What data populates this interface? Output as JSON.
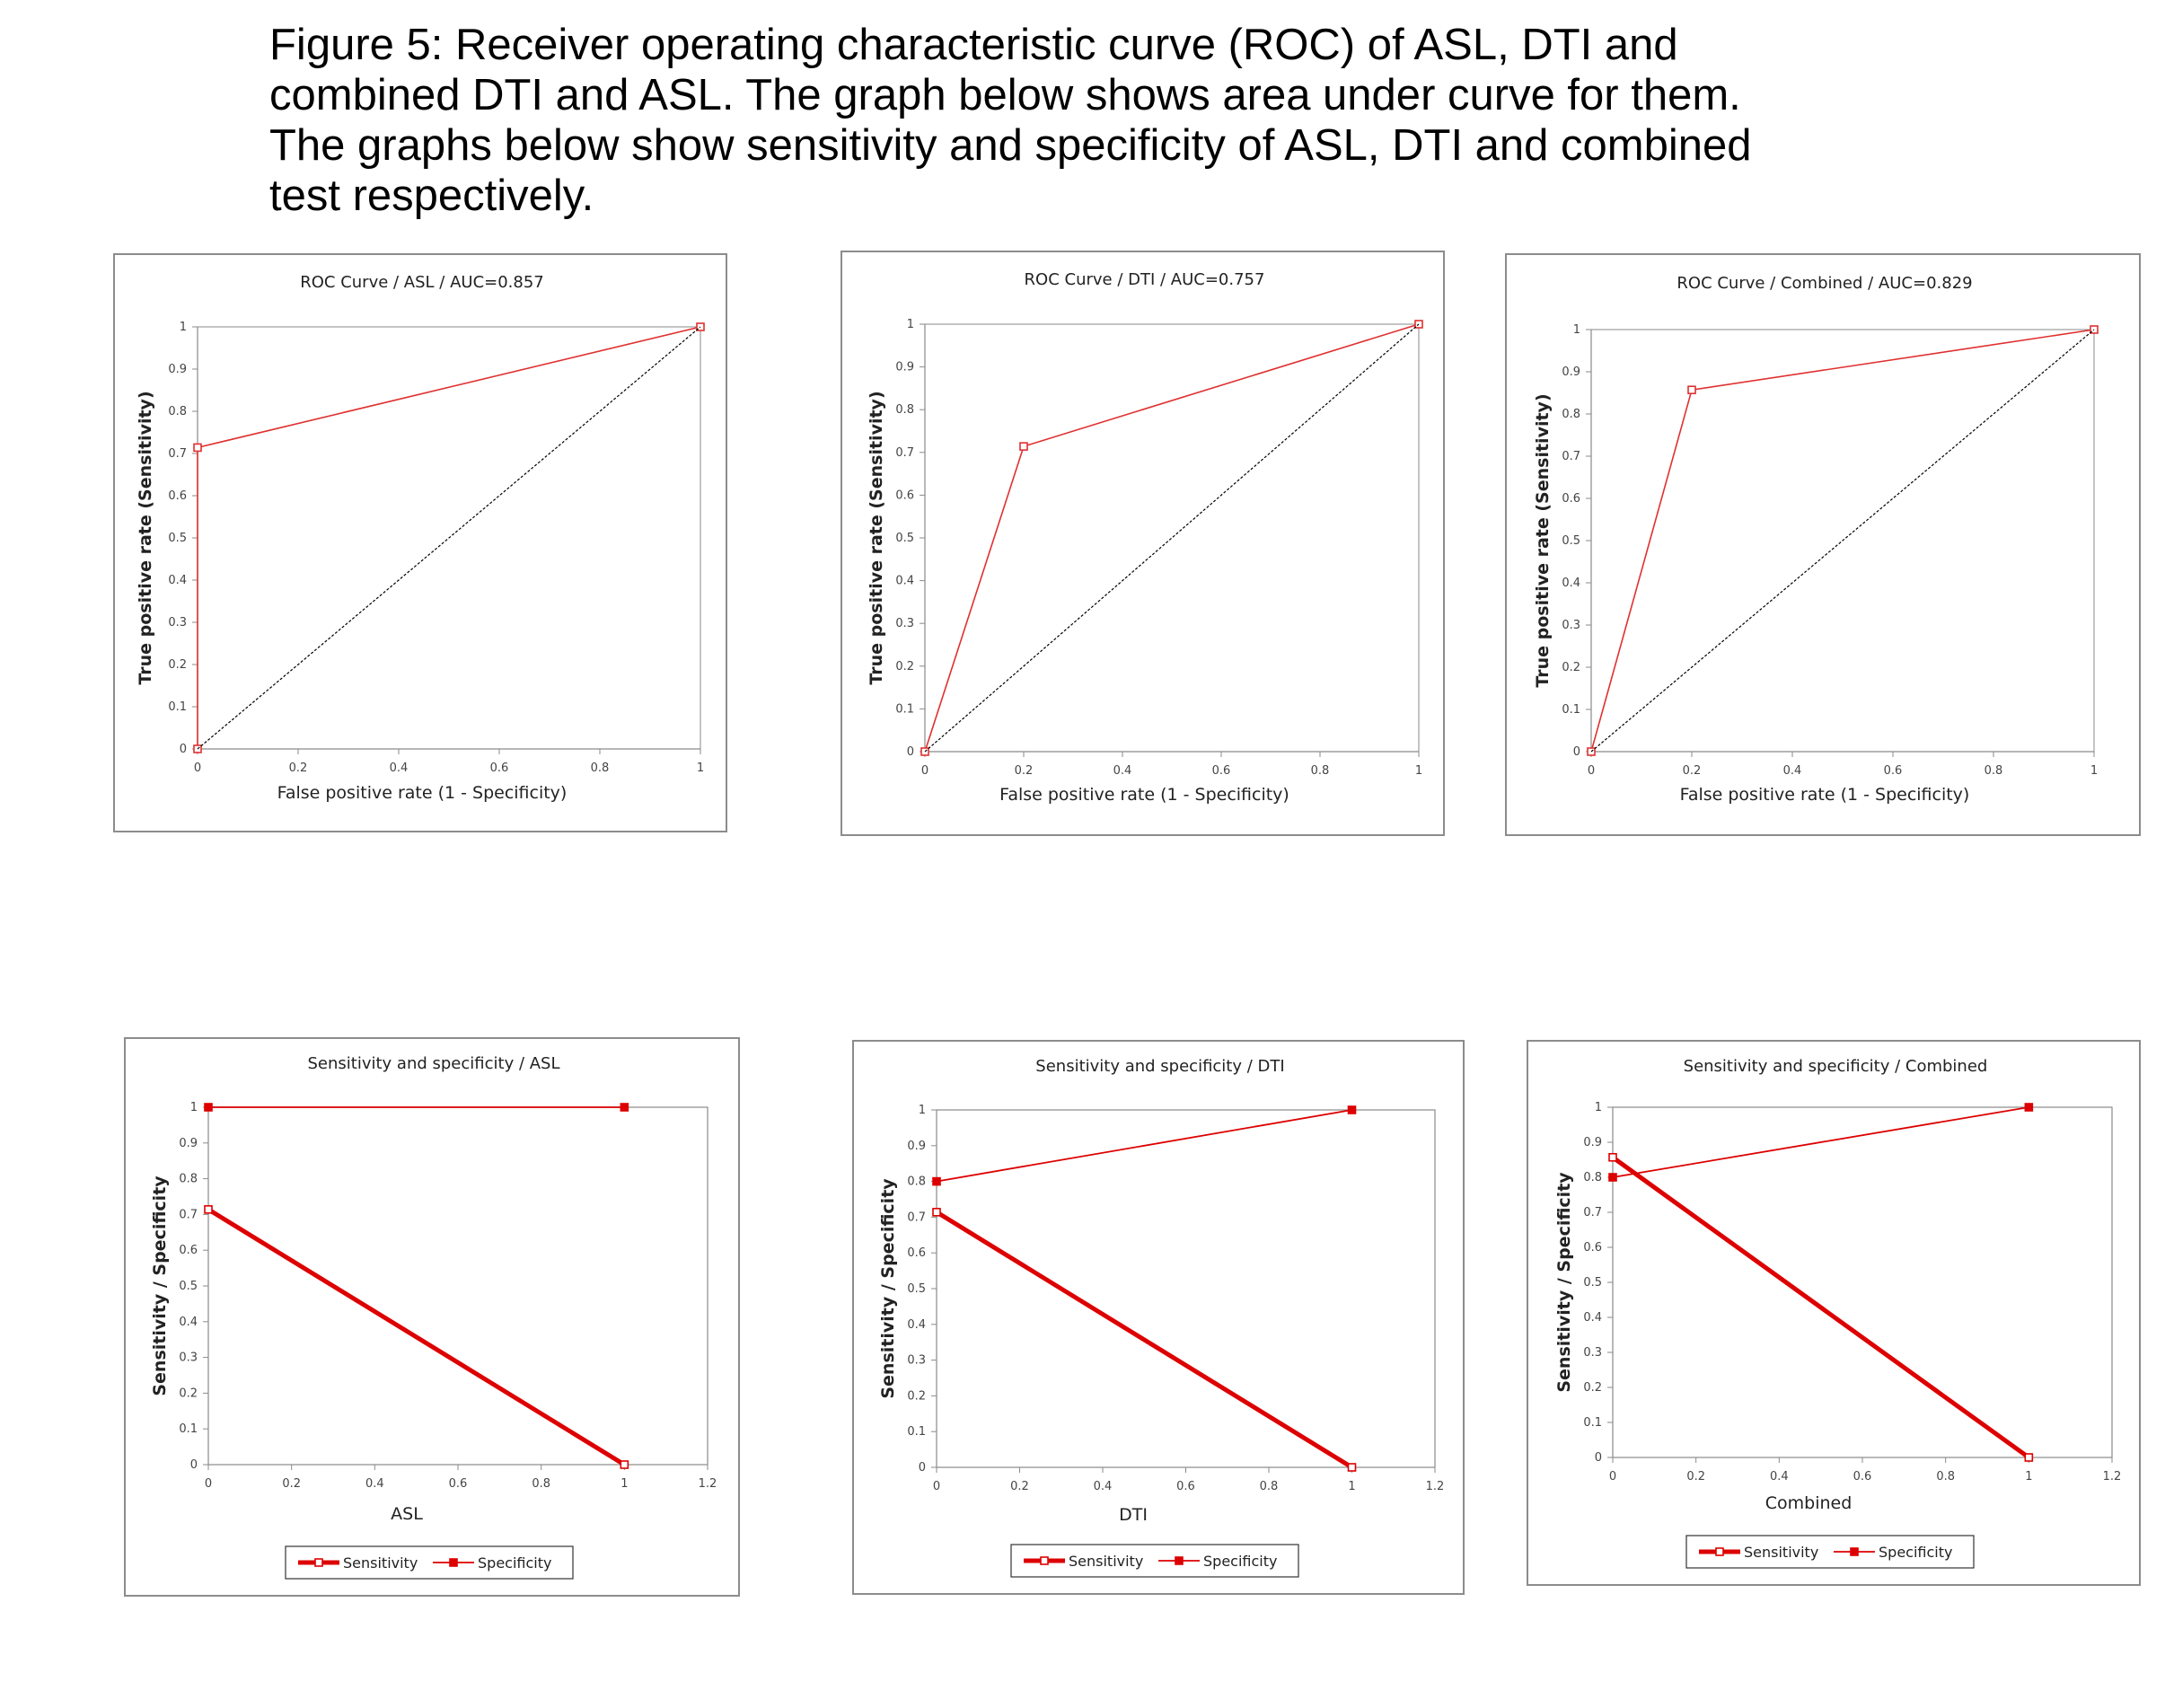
{
  "caption": [
    "Figure 5: Receiver operating characteristic curve (ROC) of ASL, DTI and",
    "combined DTI and ASL. The graph below shows area under curve for them.",
    "The graphs below show sensitivity and specificity of ASL, DTI and combined",
    "test respectively."
  ],
  "chart_data": [
    {
      "type": "line",
      "id": "roc-asl",
      "title": "ROC Curve / ASL / AUC=0.857",
      "xlabel": "False positive rate (1 - Specificity)",
      "ylabel": "True positive rate (Sensitivity)",
      "xlim": [
        0,
        1
      ],
      "ylim": [
        0,
        1
      ],
      "xticks": [
        "0",
        "0.2",
        "0.4",
        "0.6",
        "0.8",
        "1"
      ],
      "yticks": [
        "0",
        "0.1",
        "0.2",
        "0.3",
        "0.4",
        "0.5",
        "0.6",
        "0.7",
        "0.8",
        "0.9",
        "1"
      ],
      "series": [
        {
          "color": "#e03030",
          "style": "roc",
          "x": [
            0,
            0,
            1
          ],
          "y": [
            0,
            0.714,
            1
          ]
        },
        {
          "color": "#000000",
          "style": "diagonal",
          "x": [
            0,
            1
          ],
          "y": [
            0,
            1
          ]
        }
      ]
    },
    {
      "type": "line",
      "id": "roc-dti",
      "title": "ROC Curve / DTI / AUC=0.757",
      "xlabel": "False positive rate (1 - Specificity)",
      "ylabel": "True positive rate (Sensitivity)",
      "xlim": [
        0,
        1
      ],
      "ylim": [
        0,
        1
      ],
      "xticks": [
        "0",
        "0.2",
        "0.4",
        "0.6",
        "0.8",
        "1"
      ],
      "yticks": [
        "0",
        "0.1",
        "0.2",
        "0.3",
        "0.4",
        "0.5",
        "0.6",
        "0.7",
        "0.8",
        "0.9",
        "1"
      ],
      "series": [
        {
          "color": "#e03030",
          "style": "roc",
          "x": [
            0,
            0.2,
            1
          ],
          "y": [
            0,
            0.714,
            1
          ]
        },
        {
          "color": "#000000",
          "style": "diagonal",
          "x": [
            0,
            1
          ],
          "y": [
            0,
            1
          ]
        }
      ]
    },
    {
      "type": "line",
      "id": "roc-combined",
      "title": "ROC Curve / Combined  / AUC=0.829",
      "xlabel": "False positive rate (1 - Specificity)",
      "ylabel": "True positive rate (Sensitivity)",
      "xlim": [
        0,
        1
      ],
      "ylim": [
        0,
        1
      ],
      "xticks": [
        "0",
        "0.2",
        "0.4",
        "0.6",
        "0.8",
        "1"
      ],
      "yticks": [
        "0",
        "0.1",
        "0.2",
        "0.3",
        "0.4",
        "0.5",
        "0.6",
        "0.7",
        "0.8",
        "0.9",
        "1"
      ],
      "series": [
        {
          "color": "#e03030",
          "style": "roc",
          "x": [
            0,
            0.2,
            1
          ],
          "y": [
            0,
            0.857,
            1
          ]
        },
        {
          "color": "#000000",
          "style": "diagonal",
          "x": [
            0,
            1
          ],
          "y": [
            0,
            1
          ]
        }
      ]
    },
    {
      "type": "line",
      "id": "ss-asl",
      "title": "Sensitivity and specificity / ASL",
      "xlabel": "ASL",
      "ylabel": "Sensitivity / Specificity",
      "xlim": [
        0,
        1.2
      ],
      "ylim": [
        0,
        1
      ],
      "xticks": [
        "0",
        "0.2",
        "0.4",
        "0.6",
        "0.8",
        "1",
        "1.2"
      ],
      "yticks": [
        "0",
        "0.1",
        "0.2",
        "0.3",
        "0.4",
        "0.5",
        "0.6",
        "0.7",
        "0.8",
        "0.9",
        "1"
      ],
      "legend": "bottom",
      "series": [
        {
          "name": "Sensitivity",
          "color": "#dd0000",
          "style": "sens",
          "x": [
            0,
            1
          ],
          "y": [
            0.714,
            0
          ]
        },
        {
          "name": "Specificity",
          "color": "#dd0000",
          "style": "spec",
          "x": [
            0,
            1
          ],
          "y": [
            1,
            1
          ]
        }
      ]
    },
    {
      "type": "line",
      "id": "ss-dti",
      "title": "Sensitivity and specificity / DTI",
      "xlabel": "DTI",
      "ylabel": "Sensitivity / Specificity",
      "xlim": [
        0,
        1.2
      ],
      "ylim": [
        0,
        1
      ],
      "xticks": [
        "0",
        "0.2",
        "0.4",
        "0.6",
        "0.8",
        "1",
        "1.2"
      ],
      "yticks": [
        "0",
        "0.1",
        "0.2",
        "0.3",
        "0.4",
        "0.5",
        "0.6",
        "0.7",
        "0.8",
        "0.9",
        "1"
      ],
      "legend": "bottom",
      "series": [
        {
          "name": "Sensitivity",
          "color": "#dd0000",
          "style": "sens",
          "x": [
            0,
            1
          ],
          "y": [
            0.714,
            0
          ]
        },
        {
          "name": "Specificity",
          "color": "#dd0000",
          "style": "spec",
          "x": [
            0,
            1
          ],
          "y": [
            0.8,
            1
          ]
        }
      ]
    },
    {
      "type": "line",
      "id": "ss-combined",
      "title": "Sensitivity and specificity / Combined",
      "xlabel": "Combined",
      "ylabel": "Sensitivity / Specificity",
      "xlim": [
        0,
        1.2
      ],
      "ylim": [
        0,
        1
      ],
      "xticks": [
        "0",
        "0.2",
        "0.4",
        "0.6",
        "0.8",
        "1",
        "1.2"
      ],
      "yticks": [
        "0",
        "0.1",
        "0.2",
        "0.3",
        "0.4",
        "0.5",
        "0.6",
        "0.7",
        "0.8",
        "0.9",
        "1"
      ],
      "legend": "bottom",
      "series": [
        {
          "name": "Sensitivity",
          "color": "#dd0000",
          "style": "sens",
          "x": [
            0,
            1
          ],
          "y": [
            0.857,
            0
          ]
        },
        {
          "name": "Specificity",
          "color": "#dd0000",
          "style": "spec",
          "x": [
            0,
            1
          ],
          "y": [
            0.8,
            1
          ]
        }
      ]
    }
  ]
}
